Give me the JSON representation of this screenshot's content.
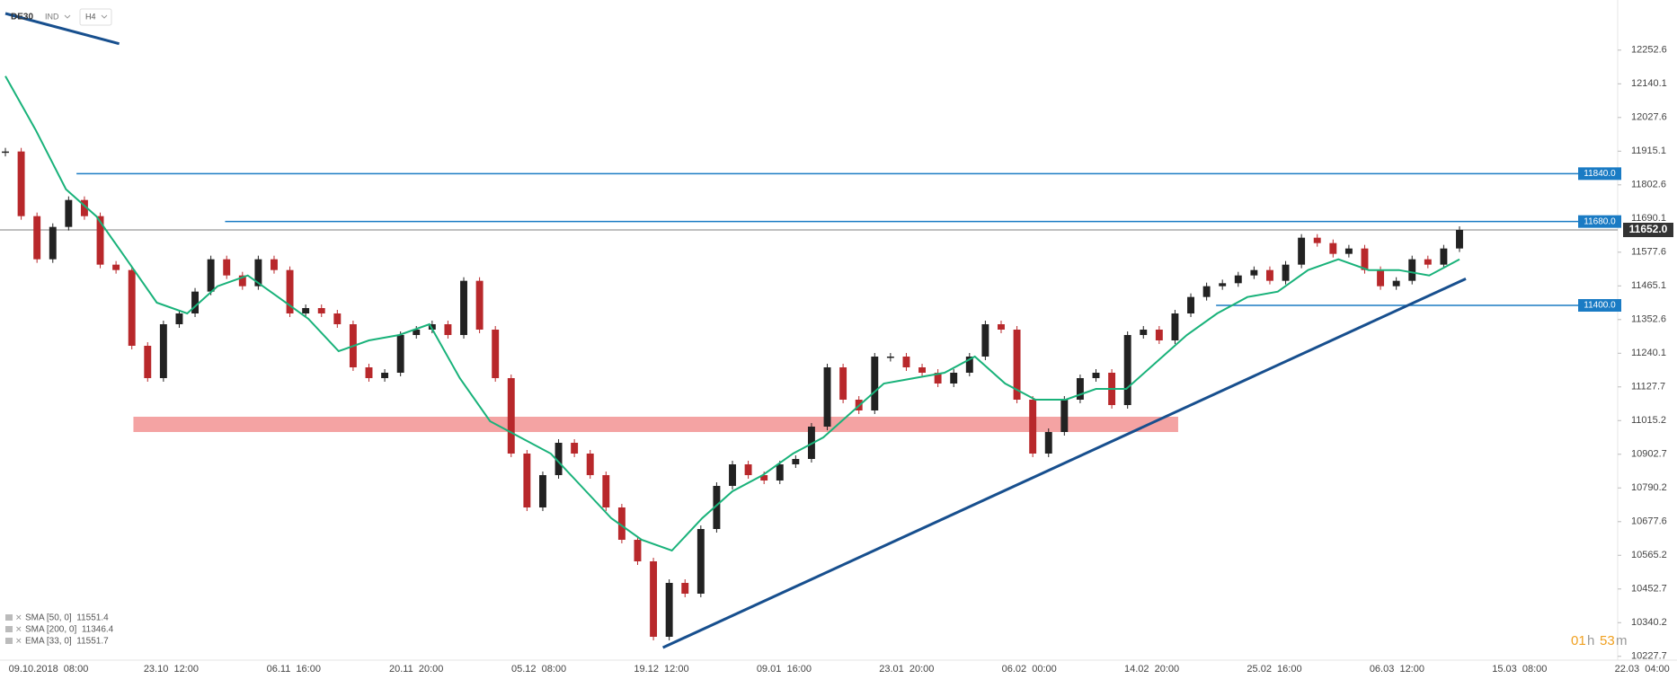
{
  "chart_data": {
    "type": "candlestick",
    "header": {
      "symbol": "DE30",
      "tag": "IND",
      "interval": "H4"
    },
    "ylim": [
      10215,
      12420
    ],
    "yticks": [
      12252.6,
      12140.1,
      12027.6,
      11915.1,
      11802.6,
      11690.1,
      11577.6,
      11465.1,
      11352.6,
      11240.1,
      11127.7,
      11015.2,
      10902.7,
      10790.2,
      10677.6,
      10565.2,
      10452.7,
      10340.2,
      10227.7
    ],
    "xlim": [
      0,
      92
    ],
    "x_labels": [
      "09.10.2018  08:00",
      "23.10  12:00",
      "06.11  16:00",
      "20.11  20:00",
      "05.12  08:00",
      "19.12  12:00",
      "09.01  16:00",
      "23.01  20:00",
      "06.02  00:00",
      "14.02  20:00",
      "25.02  16:00",
      "06.03  12:00",
      "15.03  08:00",
      "22.03  04:00"
    ],
    "candles": {
      "up_color": "#222222",
      "down_color": "#b8282b",
      "values": [
        11914,
        11698,
        11554,
        11662,
        11752,
        11698,
        11536,
        11518,
        11265,
        11157,
        11337,
        11373,
        11446,
        11554,
        11500,
        11464,
        11554,
        11518,
        11373,
        11391,
        11373,
        11337,
        11193,
        11157,
        11175,
        11301,
        11319,
        11337,
        11301,
        11482,
        11319,
        11157,
        10905,
        10725,
        10833,
        10941,
        10905,
        10833,
        10725,
        10617,
        10545,
        10293,
        10473,
        10437,
        10653,
        10797,
        10869,
        10833,
        10815,
        10869,
        10887,
        10995,
        11193,
        11085,
        11049,
        11229,
        11229,
        11193,
        11175,
        11139,
        11175,
        11229,
        11337,
        11319,
        11085,
        10905,
        10977,
        11085,
        11157,
        11175,
        11067,
        11301,
        11319,
        11283,
        11373,
        11428,
        11464,
        11474,
        11500,
        11518,
        11482,
        11536,
        11626,
        11608,
        11572,
        11590,
        11518,
        11464,
        11482,
        11554,
        11536,
        11590,
        11652
      ]
    },
    "moving_average": {
      "color": "#19b27a",
      "values": [
        12166,
        11986,
        11788,
        11698,
        11554,
        11409,
        11373,
        11464,
        11500,
        11428,
        11355,
        11247,
        11283,
        11301,
        11337,
        11157,
        11013,
        10959,
        10905,
        10797,
        10689,
        10617,
        10581,
        10689,
        10779,
        10833,
        10905,
        10959,
        11049,
        11139,
        11157,
        11175,
        11229,
        11139,
        11085,
        11085,
        11121,
        11121,
        11211,
        11301,
        11373,
        11428,
        11446,
        11518,
        11554,
        11518,
        11518,
        11500,
        11554
      ]
    },
    "levels": [
      {
        "value": 11840,
        "label": "11840.0",
        "from": 4.5
      },
      {
        "value": 11680,
        "label": "11680.0",
        "from": 13.9
      },
      {
        "value": 11400,
        "label": "11400.0",
        "from": 76.6
      }
    ],
    "level_color": "#1a7bc4",
    "current_price": {
      "value": 11652,
      "label": "11652.0"
    },
    "zone": {
      "low": 10977,
      "high": 11028,
      "from": 8.1,
      "to": 74.2,
      "color": "#f4a3a3"
    },
    "trendlines": [
      {
        "from": [
          0,
          12375
        ],
        "to": [
          7.2,
          12274
        ]
      },
      {
        "from": [
          41.6,
          10257
        ],
        "to": [
          92.4,
          11489
        ]
      }
    ],
    "trendline_color": "#174f8e",
    "indicators": [
      "SMA [50, 0]  11551.4",
      "SMA [200, 0]  11346.4",
      "EMA [33, 0]  11551.7"
    ],
    "timer": {
      "hours": "01",
      "h": "h",
      "minutes": "53",
      "m": "m"
    }
  }
}
